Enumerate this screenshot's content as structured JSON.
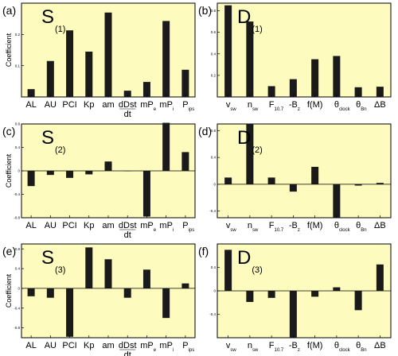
{
  "chart_data": [
    {
      "type": "bar",
      "panel_label": "(a)",
      "title": "S",
      "title_sub": "(1)",
      "ylabel": "Coefficient",
      "ylim": [
        0,
        0.3
      ],
      "yticks": [
        "0.2",
        "0.1"
      ],
      "categories": [
        {
          "label": "AL"
        },
        {
          "label": "AU"
        },
        {
          "label": "PCI"
        },
        {
          "label": "Kp"
        },
        {
          "label": "am"
        },
        {
          "label": "dDst",
          "label2": "dt"
        },
        {
          "label": "mP",
          "sub": "e"
        },
        {
          "label": "mP",
          "sub": "i"
        },
        {
          "label": "P",
          "sub": "ips"
        }
      ],
      "values": [
        0.025,
        0.115,
        0.213,
        0.145,
        0.27,
        0.02,
        0.048,
        0.243,
        0.087
      ]
    },
    {
      "type": "bar",
      "panel_label": "(b)",
      "title": "D",
      "title_sub": "(1)",
      "ylabel": "",
      "ylim": [
        0,
        0.87
      ],
      "yticks": [
        "0.8",
        "0.6",
        "0.4",
        "0.2"
      ],
      "categories": [
        {
          "label": "v",
          "sub": "sw"
        },
        {
          "label": "n",
          "sub": "sw"
        },
        {
          "label": "F",
          "sub": "10.7"
        },
        {
          "label": "-B",
          "sub": "z"
        },
        {
          "label": "f(M)"
        },
        {
          "label": "θ",
          "sub": "clock"
        },
        {
          "label": "θ",
          "sub": "Bn"
        },
        {
          "label": "ΔB"
        }
      ],
      "values": [
        0.85,
        0.7,
        0.1,
        0.165,
        0.35,
        0.38,
        0.09,
        0.095
      ]
    },
    {
      "type": "bar",
      "panel_label": "(c)",
      "title": "S",
      "title_sub": "(2)",
      "ylabel": "Coefficient",
      "ylim": [
        -0.8,
        0.8
      ],
      "yticks": [
        "0.8",
        "0.4",
        "0",
        "-0.4",
        "-0.8"
      ],
      "categories": [
        {
          "label": "AL"
        },
        {
          "label": "AU"
        },
        {
          "label": "PCI"
        },
        {
          "label": "Kp"
        },
        {
          "label": "am"
        },
        {
          "label": "dDst",
          "label2": "dt"
        },
        {
          "label": "mP",
          "sub": "e"
        },
        {
          "label": "mP",
          "sub": "i"
        },
        {
          "label": "P",
          "sub": "ips"
        }
      ],
      "values": [
        -0.26,
        -0.07,
        -0.12,
        -0.06,
        0.16,
        0.0,
        -0.78,
        0.82,
        0.32
      ]
    },
    {
      "type": "bar",
      "panel_label": "(d)",
      "title": "D",
      "title_sub": "(2)",
      "ylabel": "",
      "ylim": [
        -0.5,
        0.9
      ],
      "yticks": [
        "0.8",
        "0.4",
        "0",
        "-0.4"
      ],
      "categories": [
        {
          "label": "v",
          "sub": "sw"
        },
        {
          "label": "n",
          "sub": "sw"
        },
        {
          "label": "F",
          "sub": "10.7"
        },
        {
          "label": "-B",
          "sub": "z"
        },
        {
          "label": "f(M)"
        },
        {
          "label": "θ",
          "sub": "clock"
        },
        {
          "label": "θ",
          "sub": "Bn"
        },
        {
          "label": "ΔB"
        }
      ],
      "values": [
        0.1,
        0.9,
        0.1,
        -0.11,
        0.26,
        -0.5,
        -0.02,
        0.02
      ]
    },
    {
      "type": "bar",
      "panel_label": "(e)",
      "title": "S",
      "title_sub": "(3)",
      "ylabel": "Coefficient",
      "ylim": [
        -1.0,
        0.9
      ],
      "yticks": [
        "0.8",
        "0.4",
        "0",
        "-0.4",
        "-0.8"
      ],
      "categories": [
        {
          "label": "AL"
        },
        {
          "label": "AU"
        },
        {
          "label": "PCI"
        },
        {
          "label": "Kp"
        },
        {
          "label": "am"
        },
        {
          "label": "dDst",
          "label2": "dt"
        },
        {
          "label": "mP",
          "sub": "e"
        },
        {
          "label": "mP",
          "sub": "i"
        },
        {
          "label": "P",
          "sub": "ips"
        }
      ],
      "values": [
        -0.16,
        -0.19,
        -0.98,
        0.83,
        0.59,
        -0.19,
        0.38,
        -0.6,
        0.1
      ]
    },
    {
      "type": "bar",
      "panel_label": "(f)",
      "title": "D",
      "title_sub": "(3)",
      "ylabel": "",
      "ylim": [
        -0.8,
        0.8
      ],
      "yticks": [
        "0.4",
        "0",
        "-0.4"
      ],
      "categories": [
        {
          "label": "v",
          "sub": "sw"
        },
        {
          "label": "n",
          "sub": "sw"
        },
        {
          "label": "F",
          "sub": "10.7"
        },
        {
          "label": "-B",
          "sub": "z"
        },
        {
          "label": "f(M)"
        },
        {
          "label": "θ",
          "sub": "clock"
        },
        {
          "label": "θ",
          "sub": "Bn"
        },
        {
          "label": "ΔB"
        }
      ],
      "values": [
        0.7,
        -0.19,
        -0.12,
        -0.8,
        -0.1,
        0.06,
        -0.33,
        0.45
      ]
    }
  ],
  "colors": {
    "panel_bg": "#fdfbbd",
    "bar": "#1a1a1a",
    "axis": "#000000"
  }
}
